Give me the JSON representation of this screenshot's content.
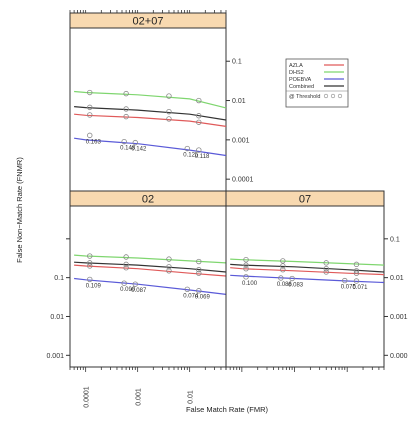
{
  "chart_data": {
    "type": "line",
    "xlabel": "False Match Rate (FMR)",
    "ylabel": "False Non−Match Rate (FNMR)",
    "x_scale": "log",
    "y_scale": "log",
    "xlim": [
      5e-05,
      0.05
    ],
    "ylim": [
      5e-05,
      0.7
    ],
    "x_ticks": [
      0.0001,
      0.001,
      0.01
    ],
    "x_tick_labels": [
      "0.0001",
      "0.001",
      "0.01"
    ],
    "y_ticks": [
      0.0001,
      0.001,
      0.01,
      0.1
    ],
    "y_tick_labels": [
      "0.0001",
      "0.001",
      "0.01",
      "0.1"
    ],
    "panel_y_tick_labels": {
      "02+07": [
        "0.0001",
        "0.001",
        "0.01",
        "0.1"
      ],
      "02": [
        "0.001",
        "0.01",
        "0.1"
      ],
      "07": [
        "0.000",
        "0.001",
        "0.01",
        "0.1"
      ]
    },
    "grid": false,
    "legend_position": "top-right",
    "legend": {
      "entries": [
        {
          "name": "AZLA",
          "color": "#e05a5a"
        },
        {
          "name": "DHS2",
          "color": "#7fd66f"
        },
        {
          "name": "POEBVA",
          "color": "#5a5ad8"
        },
        {
          "name": "Combined",
          "color": "#333333"
        }
      ],
      "threshold_label": "@ Threshold"
    },
    "panels": [
      {
        "title": "02+07",
        "series": [
          {
            "name": "AZLA",
            "color": "#e05a5a",
            "x": [
              6e-05,
              0.0001,
              0.001,
              0.01,
              0.05
            ],
            "y": [
              0.0045,
              0.0042,
              0.0037,
              0.003,
              0.0022
            ]
          },
          {
            "name": "DHS2",
            "color": "#7fd66f",
            "x": [
              6e-05,
              0.0001,
              0.001,
              0.01,
              0.05
            ],
            "y": [
              0.017,
              0.016,
              0.014,
              0.011,
              0.0065
            ]
          },
          {
            "name": "POEBVA",
            "color": "#5a5ad8",
            "x": [
              6e-05,
              0.0001,
              0.001,
              0.01,
              0.05
            ],
            "y": [
              0.0011,
              0.001,
              0.0008,
              0.00055,
              0.0004
            ]
          },
          {
            "name": "Combined",
            "color": "#333333",
            "x": [
              6e-05,
              0.0001,
              0.001,
              0.01,
              0.05
            ],
            "y": [
              0.007,
              0.0066,
              0.0057,
              0.0045,
              0.0032
            ]
          }
        ],
        "threshold_markers": [
          {
            "x": 0.00012,
            "y": 0.0013,
            "label": "0.163"
          },
          {
            "x": 0.00055,
            "y": 0.0009,
            "label": "0.148"
          },
          {
            "x": 0.0009,
            "y": 0.00085,
            "label": "0.142"
          },
          {
            "x": 0.009,
            "y": 0.0006,
            "label": "0.125"
          },
          {
            "x": 0.015,
            "y": 0.00055,
            "label": "0.118"
          }
        ],
        "threshold_points": [
          {
            "x": 0.00012,
            "y": 0.0043
          },
          {
            "x": 0.0006,
            "y": 0.0039
          },
          {
            "x": 0.004,
            "y": 0.0034
          },
          {
            "x": 0.015,
            "y": 0.0028
          },
          {
            "x": 0.00012,
            "y": 0.016
          },
          {
            "x": 0.0006,
            "y": 0.015
          },
          {
            "x": 0.004,
            "y": 0.013
          },
          {
            "x": 0.015,
            "y": 0.01
          },
          {
            "x": 0.00012,
            "y": 0.0067
          },
          {
            "x": 0.0006,
            "y": 0.0061
          },
          {
            "x": 0.004,
            "y": 0.0052
          },
          {
            "x": 0.015,
            "y": 0.0041
          }
        ]
      },
      {
        "title": "02",
        "series": [
          {
            "name": "AZLA",
            "color": "#e05a5a",
            "x": [
              6e-05,
              0.0001,
              0.001,
              0.01,
              0.05
            ],
            "y": [
              0.021,
              0.02,
              0.017,
              0.013,
              0.011
            ]
          },
          {
            "name": "DHS2",
            "color": "#7fd66f",
            "x": [
              6e-05,
              0.0001,
              0.001,
              0.01,
              0.05
            ],
            "y": [
              0.038,
              0.036,
              0.032,
              0.027,
              0.024
            ]
          },
          {
            "name": "POEBVA",
            "color": "#5a5ad8",
            "x": [
              6e-05,
              0.0001,
              0.001,
              0.01,
              0.05
            ],
            "y": [
              0.0095,
              0.0088,
              0.0068,
              0.0048,
              0.0037
            ]
          },
          {
            "name": "Combined",
            "color": "#333333",
            "x": [
              6e-05,
              0.0001,
              0.001,
              0.01,
              0.05
            ],
            "y": [
              0.025,
              0.024,
              0.021,
              0.017,
              0.014
            ]
          }
        ],
        "threshold_markers": [
          {
            "x": 0.00012,
            "y": 0.009,
            "label": "0.109"
          },
          {
            "x": 0.00055,
            "y": 0.0072,
            "label": "0.090"
          },
          {
            "x": 0.0009,
            "y": 0.0068,
            "label": "0.087"
          },
          {
            "x": 0.009,
            "y": 0.005,
            "label": "0.074"
          },
          {
            "x": 0.015,
            "y": 0.0046,
            "label": "0.069"
          }
        ],
        "threshold_points": [
          {
            "x": 0.00012,
            "y": 0.02
          },
          {
            "x": 0.0006,
            "y": 0.018
          },
          {
            "x": 0.004,
            "y": 0.015
          },
          {
            "x": 0.015,
            "y": 0.013
          },
          {
            "x": 0.00012,
            "y": 0.036
          },
          {
            "x": 0.0006,
            "y": 0.034
          },
          {
            "x": 0.004,
            "y": 0.03
          },
          {
            "x": 0.015,
            "y": 0.026
          },
          {
            "x": 0.00012,
            "y": 0.024
          },
          {
            "x": 0.0006,
            "y": 0.022
          },
          {
            "x": 0.004,
            "y": 0.019
          },
          {
            "x": 0.015,
            "y": 0.016
          }
        ]
      },
      {
        "title": "07",
        "series": [
          {
            "name": "AZLA",
            "color": "#e05a5a",
            "x": [
              6e-05,
              0.0001,
              0.001,
              0.01,
              0.05
            ],
            "y": [
              0.018,
              0.017,
              0.015,
              0.013,
              0.012
            ]
          },
          {
            "name": "DHS2",
            "color": "#7fd66f",
            "x": [
              6e-05,
              0.0001,
              0.001,
              0.01,
              0.05
            ],
            "y": [
              0.03,
              0.029,
              0.026,
              0.023,
              0.021
            ]
          },
          {
            "name": "POEBVA",
            "color": "#5a5ad8",
            "x": [
              6e-05,
              0.0001,
              0.001,
              0.01,
              0.05
            ],
            "y": [
              0.0115,
              0.011,
              0.0095,
              0.0082,
              0.0075
            ]
          },
          {
            "name": "Combined",
            "color": "#333333",
            "x": [
              6e-05,
              0.0001,
              0.001,
              0.01,
              0.05
            ],
            "y": [
              0.022,
              0.021,
              0.019,
              0.016,
              0.014
            ]
          }
        ],
        "threshold_markers": [
          {
            "x": 0.00012,
            "y": 0.0105,
            "label": "0.100"
          },
          {
            "x": 0.00055,
            "y": 0.0098,
            "label": "0.086"
          },
          {
            "x": 0.0009,
            "y": 0.0095,
            "label": "0.083"
          },
          {
            "x": 0.009,
            "y": 0.0084,
            "label": "0.075"
          },
          {
            "x": 0.015,
            "y": 0.0082,
            "label": "0.071"
          }
        ],
        "threshold_points": [
          {
            "x": 0.00012,
            "y": 0.017
          },
          {
            "x": 0.0006,
            "y": 0.016
          },
          {
            "x": 0.004,
            "y": 0.014
          },
          {
            "x": 0.015,
            "y": 0.013
          },
          {
            "x": 0.00012,
            "y": 0.029
          },
          {
            "x": 0.0006,
            "y": 0.027
          },
          {
            "x": 0.004,
            "y": 0.024
          },
          {
            "x": 0.015,
            "y": 0.022
          },
          {
            "x": 0.00012,
            "y": 0.021
          },
          {
            "x": 0.0006,
            "y": 0.02
          },
          {
            "x": 0.004,
            "y": 0.017
          },
          {
            "x": 0.015,
            "y": 0.015
          }
        ]
      }
    ]
  }
}
